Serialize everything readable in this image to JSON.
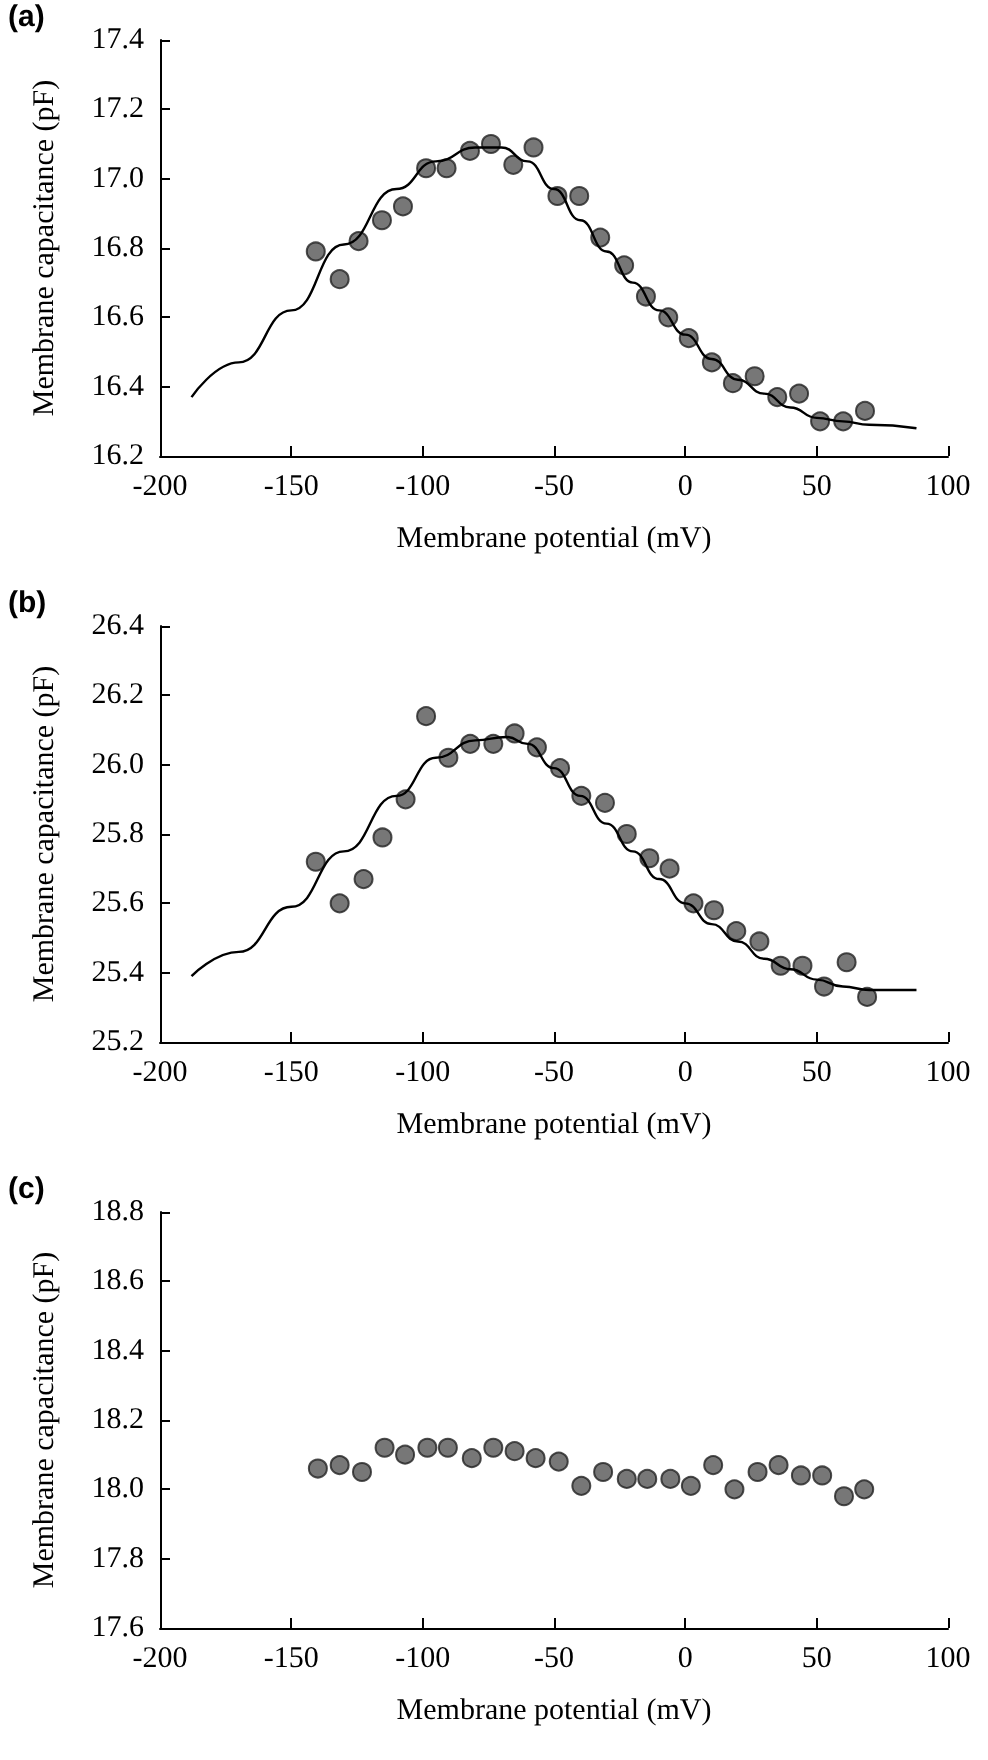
{
  "chart_data": [
    {
      "type": "scatter",
      "title": "(a)",
      "xlabel": "Membrane potential (mV)",
      "ylabel": "Membrane capacitance (pF)",
      "xlim": [
        -200,
        100
      ],
      "xticks": [
        -200,
        -150,
        -100,
        -50,
        0,
        50,
        100
      ],
      "ylim": [
        16.2,
        17.4
      ],
      "yticks": [
        16.2,
        16.4,
        16.6,
        16.8,
        {
          "value": 17,
          "label": "17.0"
        },
        17.2,
        17.4
      ],
      "grid": false,
      "series": [
        {
          "type": "scatter",
          "marker": "circle",
          "color": "#555555",
          "x": [
            -140.7,
            -131.6,
            -124.4,
            -115.5,
            -107.5,
            -98.7,
            -90.9,
            -82,
            -74,
            -65.5,
            -57.8,
            -48.7,
            -40.4,
            -32.4,
            -23.3,
            -15.0,
            -6.5,
            1.3,
            10.1,
            18.1,
            26.4,
            35.0,
            43.3,
            51.3,
            60.1,
            68.4
          ],
          "values": [
            16.79,
            16.71,
            16.82,
            16.88,
            16.92,
            17.03,
            17.03,
            17.08,
            17.1,
            17.04,
            17.09,
            16.95,
            16.95,
            16.83,
            16.75,
            16.66,
            16.6,
            16.54,
            16.47,
            16.41,
            16.43,
            16.37,
            16.38,
            16.3,
            16.3,
            16.33
          ]
        },
        {
          "type": "line",
          "marker": "none",
          "line_style": "solid",
          "color": "#000000",
          "x": [
            -188,
            -170,
            -150,
            -130,
            -110,
            -95,
            -80,
            -70,
            -60,
            -50,
            -40,
            -30,
            -20,
            -10,
            0,
            10,
            20,
            30,
            40,
            50,
            60,
            70,
            88
          ],
          "values": [
            16.37,
            16.47,
            16.62,
            16.81,
            16.97,
            17.05,
            17.09,
            17.09,
            17.05,
            16.97,
            16.88,
            16.79,
            16.7,
            16.62,
            16.55,
            16.48,
            16.42,
            16.38,
            16.34,
            16.31,
            16.3,
            16.29,
            16.28
          ]
        }
      ]
    },
    {
      "type": "scatter",
      "title": "(b)",
      "xlabel": "Membrane potential (mV)",
      "ylabel": "Membrane capacitance (pF)",
      "xlim": [
        -200,
        100
      ],
      "xticks": [
        -200,
        -150,
        -100,
        -50,
        0,
        50,
        100
      ],
      "ylim": [
        25.2,
        26.4
      ],
      "yticks": [
        25.2,
        25.4,
        25.6,
        25.8,
        {
          "value": 26,
          "label": "26.0"
        },
        26.2,
        26.4
      ],
      "grid": false,
      "series": [
        {
          "type": "scatter",
          "marker": "circle",
          "color": "#555555",
          "x": [
            -140.7,
            -131.6,
            -122.5,
            -115.3,
            -106.5,
            -98.7,
            -90.2,
            -81.9,
            -73.1,
            -65.0,
            -56.5,
            -47.7,
            -39.6,
            -30.6,
            -22.3,
            -13.7,
            -6.0,
            3.1,
            10.9,
            19.4,
            28.2,
            36.3,
            44.6,
            52.8,
            61.4,
            69.2
          ],
          "values": [
            25.72,
            25.6,
            25.67,
            25.79,
            25.9,
            26.14,
            26.02,
            26.06,
            26.06,
            26.09,
            26.05,
            25.99,
            25.91,
            25.89,
            25.8,
            25.73,
            25.7,
            25.6,
            25.58,
            25.52,
            25.49,
            25.42,
            25.42,
            25.36,
            25.43,
            25.33
          ]
        },
        {
          "type": "line",
          "marker": "none",
          "line_style": "solid",
          "color": "#000000",
          "x": [
            -188,
            -170,
            -150,
            -130,
            -110,
            -95,
            -80,
            -68,
            -60,
            -50,
            -40,
            -30,
            -20,
            -10,
            0,
            10,
            20,
            30,
            40,
            50,
            60,
            70,
            88
          ],
          "values": [
            25.39,
            25.46,
            25.59,
            25.75,
            25.91,
            26.02,
            26.07,
            26.08,
            26.06,
            25.99,
            25.91,
            25.83,
            25.75,
            25.67,
            25.6,
            25.54,
            25.49,
            25.44,
            25.41,
            25.38,
            25.36,
            25.35,
            25.35
          ]
        }
      ]
    },
    {
      "type": "scatter",
      "title": "(c)",
      "xlabel": "Membrane potential (mV)",
      "ylabel": "Membrane capacitance (pF)",
      "xlim": [
        -200,
        100
      ],
      "xticks": [
        -200,
        -150,
        -100,
        -50,
        0,
        50,
        100
      ],
      "ylim": [
        17.6,
        18.8
      ],
      "yticks": [
        17.6,
        17.8,
        {
          "value": 18,
          "label": "18.0"
        },
        18.2,
        18.4,
        18.6,
        18.8
      ],
      "grid": false,
      "series": [
        {
          "type": "scatter",
          "marker": "circle",
          "color": "#555555",
          "x": [
            -139.9,
            -131.6,
            -123.1,
            -114.5,
            -106.7,
            -98.2,
            -90.4,
            -81.3,
            -73.1,
            -65.0,
            -57.0,
            -48.2,
            -39.6,
            -31.3,
            -22.3,
            -14.5,
            -5.7,
            2.1,
            10.6,
            18.7,
            27.5,
            35.5,
            44.0,
            52.1,
            60.4,
            68.1
          ],
          "values": [
            18.06,
            18.07,
            18.05,
            18.12,
            18.1,
            18.12,
            18.12,
            18.09,
            18.12,
            18.11,
            18.09,
            18.08,
            18.01,
            18.05,
            18.03,
            18.03,
            18.03,
            18.01,
            18.07,
            18.0,
            18.05,
            18.07,
            18.04,
            18.04,
            17.98,
            18.0
          ]
        }
      ]
    }
  ]
}
